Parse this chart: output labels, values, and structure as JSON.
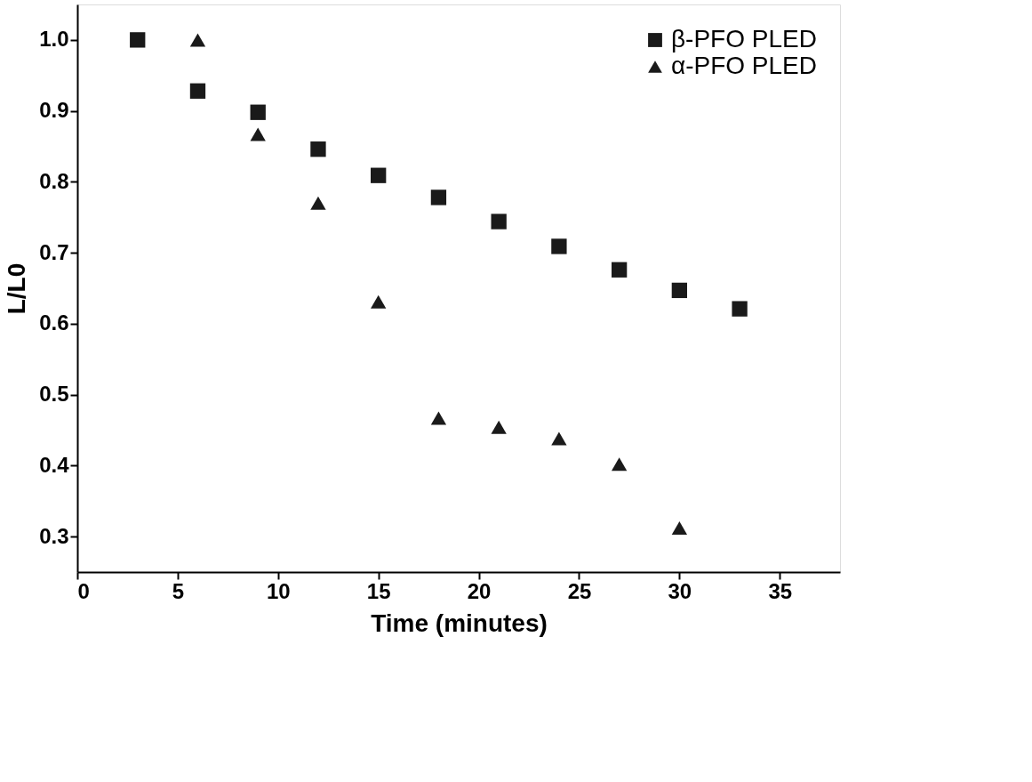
{
  "chart_data": {
    "type": "scatter",
    "xlabel": "Time (minutes)",
    "ylabel": "L/L0",
    "xlim": [
      0,
      38
    ],
    "xticks": [
      0,
      5,
      10,
      15,
      20,
      25,
      30,
      35
    ],
    "ylim": [
      0.25,
      1.05
    ],
    "yticks": [
      0.3,
      0.4,
      0.5,
      0.6,
      0.7,
      0.8,
      0.9,
      {
        "value": 1.0,
        "label": "1.0"
      }
    ],
    "grid": false,
    "legend": "top right",
    "series": [
      {
        "name": "β-PFO PLED",
        "color": "#1a1a1a",
        "marker": "square",
        "x": [
          3,
          6,
          9,
          12,
          15,
          18,
          21,
          24,
          27,
          30,
          33
        ],
        "values": [
          1.0,
          0.928,
          0.898,
          0.846,
          0.809,
          0.778,
          0.744,
          0.709,
          0.676,
          0.647,
          0.621
        ]
      },
      {
        "name": "α-PFO PLED",
        "color": "#1a1a1a",
        "marker": "triangle",
        "x": [
          6,
          9,
          12,
          15,
          18,
          21,
          24,
          27,
          30
        ],
        "values": [
          1.0,
          0.867,
          0.77,
          0.631,
          0.467,
          0.454,
          0.438,
          0.402,
          0.312
        ]
      }
    ]
  }
}
